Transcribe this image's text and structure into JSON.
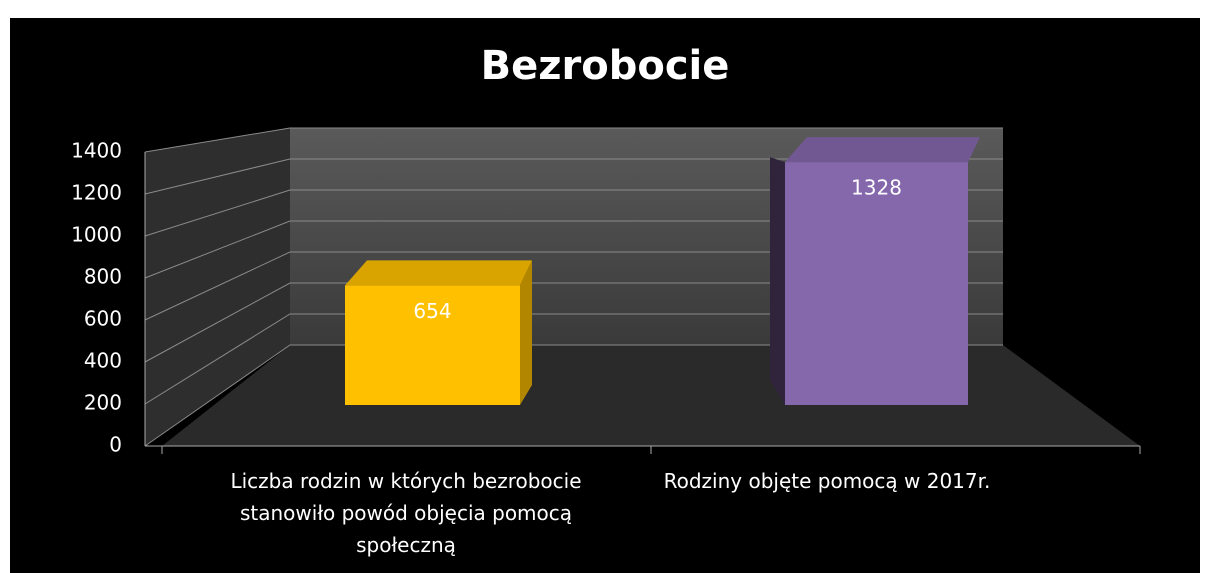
{
  "chart_data": {
    "type": "bar3d",
    "title": "Bezrobocie",
    "categories": [
      "Liczba rodzin w których bezrobocie stanowiło powód objęcia pomocą społeczną",
      "Rodziny objęte pomocą w 2017r."
    ],
    "values": [
      654,
      1328
    ],
    "colors": [
      "#ffc000",
      "#8567ac"
    ],
    "ylim": [
      0,
      1400
    ],
    "yticks": [
      0,
      200,
      400,
      600,
      800,
      1000,
      1200,
      1400
    ],
    "grid": true
  }
}
